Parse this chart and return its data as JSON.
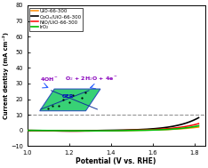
{
  "xlabel": "Potential (V vs. RHE)",
  "ylabel": "Current dentisy (mA cm⁻²)",
  "xlim": [
    1.0,
    1.85
  ],
  "ylim": [
    -10,
    80
  ],
  "yticks": [
    -10,
    0,
    10,
    20,
    30,
    40,
    50,
    60,
    70,
    80
  ],
  "xticks": [
    1.0,
    1.2,
    1.4,
    1.6,
    1.8
  ],
  "dashed_line_y": 10,
  "legend": [
    {
      "label": "UiO-66-300",
      "color": "#FF8C00"
    },
    {
      "label": "CoOₓ/UiO-66-300",
      "color": "#000000"
    },
    {
      "label": "NiO/UiO-66-300",
      "color": "#FF0000"
    },
    {
      "label": "IrO₂",
      "color": "#00BB00"
    }
  ],
  "background_color": "#ffffff",
  "uio_onset": 1.48,
  "uio_scale": 0.18,
  "uio_exp": 7.5,
  "coox_onset": 1.35,
  "coox_scale": 0.12,
  "coox_exp": 9.0,
  "nio_onset": 1.42,
  "nio_scale": 0.15,
  "nio_exp": 8.5,
  "iro2_onset": 1.53,
  "iro2_scale": 0.25,
  "iro2_exp": 8.8
}
